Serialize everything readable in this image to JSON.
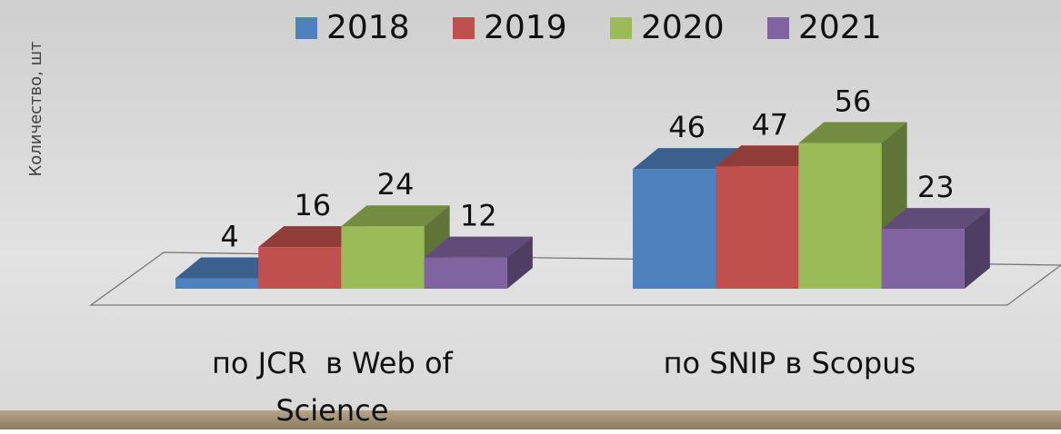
{
  "chart_data": {
    "type": "bar3d",
    "y_label": "Количество, шт",
    "categories": [
      "по JCR  в Web of Science",
      "по SNIP в Scopus"
    ],
    "series": [
      {
        "name": "2018",
        "color": "#4f81bd",
        "values": [
          4,
          46
        ]
      },
      {
        "name": "2019",
        "color": "#c0504d",
        "values": [
          16,
          47
        ]
      },
      {
        "name": "2020",
        "color": "#9bbb59",
        "values": [
          24,
          56
        ]
      },
      {
        "name": "2021",
        "color": "#8064a2",
        "values": [
          12,
          23
        ]
      }
    ],
    "ylim": [
      0,
      60
    ],
    "legend": "top"
  }
}
